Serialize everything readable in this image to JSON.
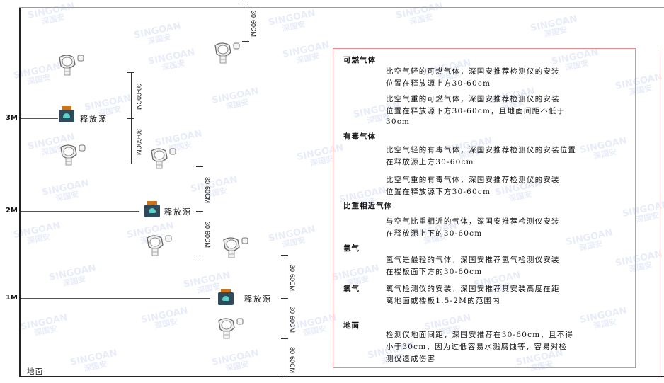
{
  "watermark": {
    "brand": "SINGOAN",
    "cn": "深国安"
  },
  "levels": [
    "3M",
    "2M",
    "1M"
  ],
  "ground_label": "地面",
  "source_label": "释放源",
  "dimension_label": "30-60CM",
  "colors": {
    "box_border": "#f08a8a",
    "source_body": "#2f4a5a",
    "source_cap": "#c9741f",
    "face": "#5fd0c8"
  },
  "info": {
    "flammable": {
      "title": "可燃气体",
      "lighter": [
        "比空气轻的可燃气体，深国安推荐检测仪的安装",
        "位置在释放源上方30-60cm"
      ],
      "heavier": [
        "比空气重的可燃气体，深国安推荐检测仪的安装",
        "位置在释放源下方30-60cm，且地面间距不低于",
        "30cm"
      ]
    },
    "toxic": {
      "title": "有毒气体",
      "lighter": [
        "比空气轻的有毒气体，深国安推荐检测仪的安装位置",
        "在释放源上方30-60cm"
      ],
      "heavier": [
        "比空气重的有毒气体，深国安推荐检测仪的安装",
        "位置在释放源下方30-60cm"
      ]
    },
    "similar": {
      "title": "比重相近气体",
      "lines": [
        "与空气比重相近的气体，深国安推荐检测仪安装",
        "在释放源上下的30-60cm"
      ]
    },
    "hydrogen": {
      "title": "氢气",
      "lines": [
        "氢气是最轻的气体，深国安推荐氢气检测仪安装",
        "在楼板面下方的30-60cm"
      ]
    },
    "oxygen": {
      "title": "氧气",
      "lines": [
        "氧气检测仪的安装，深国安推荐其安装高度在距",
        "离地面或楼板1.5-2M的范围内"
      ]
    },
    "ground": {
      "title": "地面",
      "lines": [
        "检测仪地面间距，深国安推荐在30-60cm，且不得",
        "小于30cm，因为过低容易水溅腐蚀等，容易对检",
        "测仪造成伤害"
      ]
    }
  }
}
